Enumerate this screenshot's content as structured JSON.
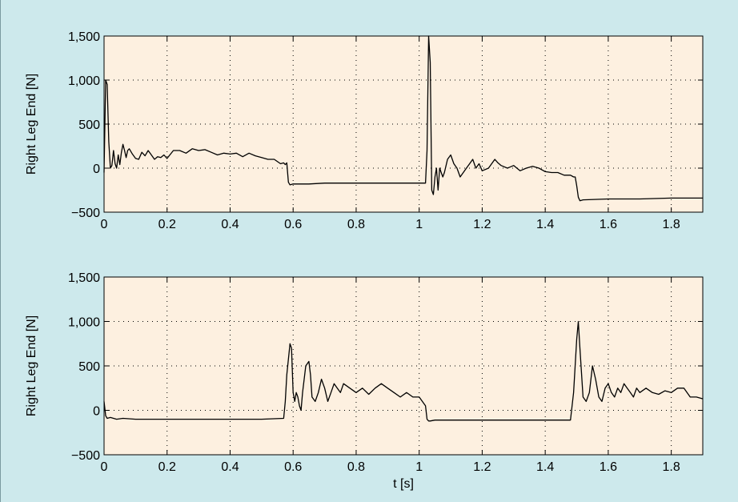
{
  "colors": {
    "figure_background": "#cde9ec",
    "plot_background": "#fdf0e0",
    "line": "#000000"
  },
  "chart_data": [
    {
      "type": "line",
      "title": "",
      "xlabel": "",
      "ylabel": "Right Leg End [N]",
      "xlim": [
        0,
        1.9
      ],
      "ylim": [
        -500,
        1500
      ],
      "xticks": [
        0,
        0.2,
        0.4,
        0.6,
        0.8,
        1,
        1.2,
        1.4,
        1.6,
        1.8
      ],
      "xtick_labels": [
        "0",
        "0.2",
        "0.4",
        "0.6",
        "0.8",
        "1",
        "1.2",
        "1.4",
        "1.6",
        "1.8"
      ],
      "yticks": [
        -500,
        0,
        500,
        1000,
        1500
      ],
      "ytick_labels": [
        "−500",
        "0",
        "500",
        "1,000",
        "1,500"
      ],
      "grid": true,
      "series": [
        {
          "x": [
            0,
            0.005,
            0.01,
            0.015,
            0.02,
            0.025,
            0.03,
            0.035,
            0.04,
            0.045,
            0.05,
            0.055,
            0.06,
            0.065,
            0.07,
            0.075,
            0.08,
            0.09,
            0.1,
            0.11,
            0.12,
            0.13,
            0.14,
            0.15,
            0.16,
            0.17,
            0.18,
            0.19,
            0.2,
            0.22,
            0.24,
            0.26,
            0.28,
            0.3,
            0.32,
            0.34,
            0.36,
            0.38,
            0.4,
            0.42,
            0.44,
            0.46,
            0.48,
            0.5,
            0.52,
            0.54,
            0.56,
            0.57,
            0.575,
            0.58,
            0.585,
            0.59,
            0.6,
            0.65,
            0.7,
            0.8,
            0.9,
            1.0,
            1.02,
            1.025,
            1.03,
            1.035,
            1.04,
            1.045,
            1.05,
            1.055,
            1.06,
            1.065,
            1.07,
            1.075,
            1.08,
            1.09,
            1.1,
            1.11,
            1.12,
            1.13,
            1.14,
            1.15,
            1.16,
            1.17,
            1.18,
            1.19,
            1.2,
            1.22,
            1.24,
            1.25,
            1.26,
            1.28,
            1.3,
            1.32,
            1.34,
            1.36,
            1.38,
            1.4,
            1.42,
            1.44,
            1.46,
            1.48,
            1.49,
            1.495,
            1.5,
            1.505,
            1.51,
            1.52,
            1.6,
            1.7,
            1.8,
            1.9
          ],
          "y": [
            -50,
            1000,
            950,
            300,
            0,
            30,
            200,
            50,
            0,
            150,
            40,
            180,
            270,
            200,
            120,
            200,
            220,
            160,
            110,
            100,
            180,
            140,
            200,
            150,
            100,
            130,
            120,
            150,
            110,
            200,
            200,
            170,
            220,
            200,
            210,
            180,
            150,
            170,
            160,
            170,
            130,
            170,
            140,
            120,
            100,
            100,
            50,
            60,
            40,
            60,
            -160,
            -190,
            -180,
            -180,
            -170,
            -170,
            -170,
            -170,
            -170,
            200,
            1500,
            1200,
            -250,
            -300,
            -100,
            0,
            -250,
            0,
            -50,
            -100,
            -50,
            100,
            150,
            50,
            0,
            -100,
            -50,
            0,
            50,
            100,
            0,
            50,
            -30,
            0,
            100,
            60,
            30,
            0,
            30,
            -30,
            0,
            20,
            0,
            -40,
            -50,
            -50,
            -80,
            -80,
            -100,
            -100,
            -200,
            -330,
            -370,
            -360,
            -350,
            -350,
            -340,
            -340
          ]
        }
      ]
    },
    {
      "type": "line",
      "title": "",
      "xlabel": "t [s]",
      "ylabel": "Right Leg End [N]",
      "xlim": [
        0,
        1.9
      ],
      "ylim": [
        -500,
        1500
      ],
      "xticks": [
        0,
        0.2,
        0.4,
        0.6,
        0.8,
        1,
        1.2,
        1.4,
        1.6,
        1.8
      ],
      "xtick_labels": [
        "0",
        "0.2",
        "0.4",
        "0.6",
        "0.8",
        "1",
        "1.2",
        "1.4",
        "1.6",
        "1.8"
      ],
      "yticks": [
        -500,
        0,
        500,
        1000,
        1500
      ],
      "ytick_labels": [
        "−500",
        "0",
        "500",
        "1,000",
        "1,500"
      ],
      "grid": true,
      "series": [
        {
          "x": [
            0,
            0.005,
            0.01,
            0.02,
            0.04,
            0.06,
            0.1,
            0.2,
            0.3,
            0.4,
            0.5,
            0.57,
            0.575,
            0.58,
            0.59,
            0.595,
            0.6,
            0.605,
            0.61,
            0.615,
            0.62,
            0.625,
            0.63,
            0.64,
            0.65,
            0.655,
            0.66,
            0.67,
            0.68,
            0.69,
            0.7,
            0.71,
            0.72,
            0.73,
            0.74,
            0.75,
            0.76,
            0.78,
            0.8,
            0.82,
            0.84,
            0.86,
            0.88,
            0.9,
            0.92,
            0.94,
            0.96,
            0.98,
            1.0,
            1.02,
            1.025,
            1.03,
            1.035,
            1.05,
            1.1,
            1.2,
            1.3,
            1.4,
            1.48,
            1.49,
            1.5,
            1.505,
            1.51,
            1.52,
            1.53,
            1.54,
            1.55,
            1.56,
            1.57,
            1.58,
            1.59,
            1.6,
            1.61,
            1.62,
            1.63,
            1.64,
            1.65,
            1.66,
            1.67,
            1.68,
            1.69,
            1.7,
            1.72,
            1.74,
            1.76,
            1.78,
            1.8,
            1.82,
            1.84,
            1.86,
            1.88,
            1.9
          ],
          "y": [
            100,
            -60,
            -90,
            -80,
            -100,
            -90,
            -100,
            -100,
            -100,
            -100,
            -100,
            -90,
            100,
            400,
            750,
            700,
            200,
            100,
            200,
            150,
            50,
            0,
            200,
            500,
            550,
            400,
            150,
            100,
            200,
            350,
            250,
            100,
            200,
            300,
            250,
            200,
            300,
            250,
            200,
            250,
            180,
            250,
            300,
            250,
            200,
            150,
            200,
            150,
            150,
            50,
            -100,
            -120,
            -120,
            -110,
            -110,
            -110,
            -110,
            -110,
            -110,
            200,
            800,
            1000,
            700,
            150,
            100,
            200,
            500,
            350,
            150,
            100,
            250,
            300,
            200,
            150,
            250,
            200,
            300,
            250,
            200,
            150,
            250,
            200,
            250,
            200,
            180,
            220,
            200,
            250,
            250,
            150,
            150,
            130
          ]
        }
      ]
    }
  ]
}
